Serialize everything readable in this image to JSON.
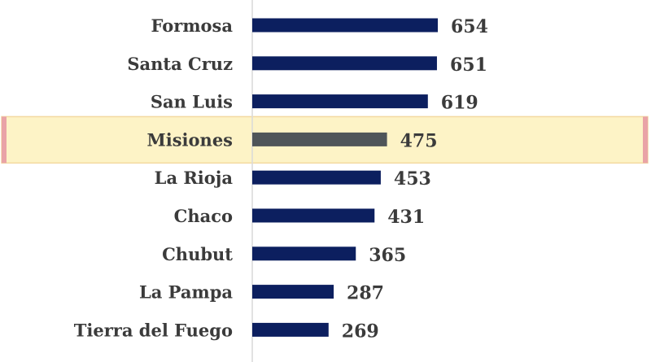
{
  "chart_data": {
    "type": "bar",
    "orientation": "horizontal",
    "categories": [
      "Formosa",
      "Santa Cruz",
      "San Luis",
      "Misiones",
      "La Rioja",
      "Chaco",
      "Chubut",
      "La Pampa",
      "Tierra del Fuego"
    ],
    "values": [
      654,
      651,
      619,
      475,
      453,
      431,
      365,
      287,
      269
    ],
    "highlighted_category": "Misiones",
    "title": "",
    "xlabel": "",
    "ylabel": "",
    "xlim": [
      0,
      700
    ],
    "grid": false,
    "legend": "none"
  },
  "colors": {
    "bar": "#0c1f5f",
    "highlight_bar": "#4f5559",
    "highlight_band": "#fdf3c6",
    "highlight_border": "#e9a3a7",
    "axis": "#d9d9d9",
    "text": "#3b3b3b",
    "background": "#ffffff"
  }
}
